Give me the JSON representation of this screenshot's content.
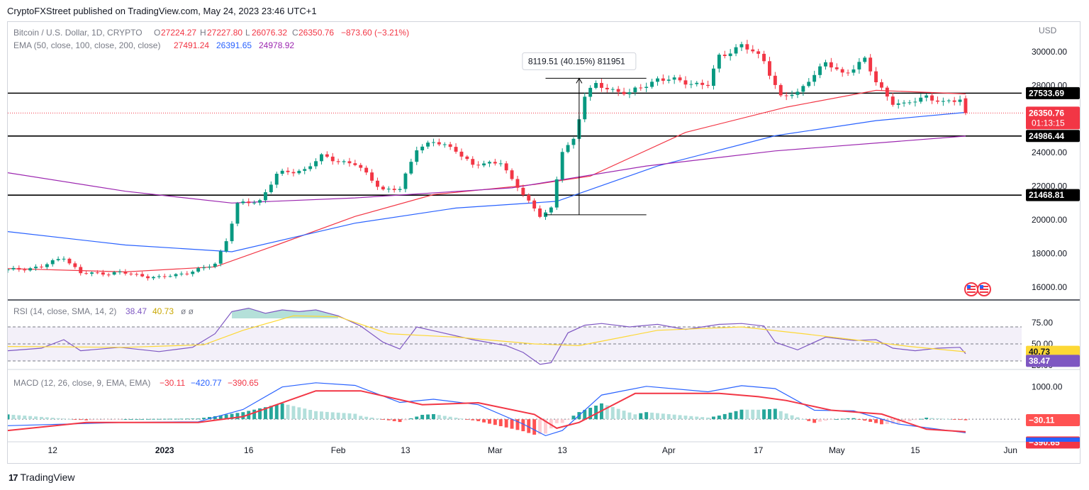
{
  "header": "CryptoFXStreet published on TradingView.com, May 24, 2023 23:46 UTC+1",
  "footer": {
    "brand": "TradingView",
    "logo_glyph": "17"
  },
  "legend": {
    "title": "Bitcoin / U.S. Dollar, 1D, CRYPTO",
    "o_label": "O",
    "o": "27224.27",
    "h_label": "H",
    "h": "27227.80",
    "l_label": "L",
    "l": "26076.32",
    "c_label": "C",
    "c": "26350.76",
    "change": "−873.60 (−3.21%)",
    "ema_title": "EMA (50, close, 100, close, 200, close)",
    "ema50": "27491.24",
    "ema100": "26391.65",
    "ema200": "24978.92",
    "rsi_title": "RSI (14, close, SMA, 14, 2)",
    "rsi": "38.47",
    "rsi_sma": "40.73",
    "rsi_extra": "ø ø",
    "macd_title": "MACD (12, 26, close, 9, EMA, EMA)",
    "macd_hist": "−30.11",
    "macd_line": "−420.77",
    "macd_signal": "−390.65"
  },
  "price_axis": {
    "unit": "USD",
    "ticks": [
      "30000.00",
      "28000.00",
      "26000.00",
      "24000.00",
      "22000.00",
      "20000.00",
      "18000.00",
      "16000.00"
    ]
  },
  "rsi_axis": {
    "ticks": [
      "75.00",
      "50.00",
      "25.00"
    ]
  },
  "macd_axis": {
    "ticks": [
      "1000.00"
    ]
  },
  "time_axis": {
    "labels": [
      "12",
      "2023",
      "16",
      "Feb",
      "13",
      "Mar",
      "13",
      "Apr",
      "17",
      "May",
      "15",
      "Jun"
    ]
  },
  "price_tags": {
    "level_1": "27533.69",
    "last": "26350.76",
    "countdown": "01:13:15",
    "level_2": "24986.44",
    "level_3": "21468.81",
    "rsi_sma": "40.73",
    "rsi": "38.47",
    "macd_hist": "−30.11",
    "macd_signal": "−390.65",
    "macd_line": "−420.77"
  },
  "measure_label": "8119.51 (40.15%) 811951",
  "colors": {
    "up": "#089981",
    "down": "#f23645",
    "ema50": "#f23645",
    "ema100": "#2962ff",
    "ema200": "#9c27b0",
    "rsi": "#7e57c2",
    "rsi_sma": "#fdd835"
  },
  "chart_data": [
    {
      "type": "candlestick",
      "title": "Bitcoin / U.S. Dollar, 1D, CRYPTO",
      "ylabel": "USD",
      "ylim": [
        15400,
        31600
      ],
      "x_range": [
        "2022-12-04",
        "2023-06-03"
      ],
      "x_tick_labels": [
        "12",
        "2023",
        "16",
        "Feb",
        "13",
        "Mar",
        "13",
        "Apr",
        "17",
        "May",
        "15",
        "Jun"
      ],
      "horizontal_levels": [
        27533.69,
        24986.44,
        21468.81
      ],
      "last_price": 26350.76,
      "measure": {
        "from": 20300,
        "to": 28420,
        "label": "8119.51 (40.15%) 811951"
      },
      "close_path": [
        [
          "2022-12-04",
          17000
        ],
        [
          "2022-12-10",
          17200
        ],
        [
          "2022-12-14",
          17800
        ],
        [
          "2022-12-17",
          16800
        ],
        [
          "2022-12-24",
          16850
        ],
        [
          "2022-12-31",
          16550
        ],
        [
          "2023-01-04",
          16800
        ],
        [
          "2023-01-08",
          17100
        ],
        [
          "2023-01-10",
          17400
        ],
        [
          "2023-01-12",
          18800
        ],
        [
          "2023-01-14",
          20900
        ],
        [
          "2023-01-18",
          21150
        ],
        [
          "2023-01-21",
          22700
        ],
        [
          "2023-01-26",
          23000
        ],
        [
          "2023-01-29",
          23750
        ],
        [
          "2023-02-04",
          23300
        ],
        [
          "2023-02-09",
          21800
        ],
        [
          "2023-02-12",
          21800
        ],
        [
          "2023-02-15",
          24300
        ],
        [
          "2023-02-18",
          24600
        ],
        [
          "2023-02-22",
          24200
        ],
        [
          "2023-02-25",
          23200
        ],
        [
          "2023-03-02",
          23500
        ],
        [
          "2023-03-04",
          22300
        ],
        [
          "2023-03-09",
          20300
        ],
        [
          "2023-03-11",
          20600
        ],
        [
          "2023-03-13",
          24100
        ],
        [
          "2023-03-15",
          24800
        ],
        [
          "2023-03-17",
          27400
        ],
        [
          "2023-03-19",
          28000
        ],
        [
          "2023-03-25",
          27500
        ],
        [
          "2023-03-30",
          28400
        ],
        [
          "2023-04-04",
          28200
        ],
        [
          "2023-04-08",
          28000
        ],
        [
          "2023-04-10",
          29700
        ],
        [
          "2023-04-14",
          30400
        ],
        [
          "2023-04-18",
          29500
        ],
        [
          "2023-04-21",
          27300
        ],
        [
          "2023-04-24",
          27500
        ],
        [
          "2023-04-26",
          28400
        ],
        [
          "2023-04-29",
          29300
        ],
        [
          "2023-05-02",
          28700
        ],
        [
          "2023-05-06",
          29500
        ],
        [
          "2023-05-08",
          28200
        ],
        [
          "2023-05-11",
          27000
        ],
        [
          "2023-05-13",
          26800
        ],
        [
          "2023-05-17",
          27400
        ],
        [
          "2023-05-20",
          26900
        ],
        [
          "2023-05-23",
          27200
        ],
        [
          "2023-05-24",
          26350.76
        ]
      ],
      "series": [
        {
          "name": "EMA 50",
          "color": "#f23645",
          "points": [
            [
              "2022-12-04",
              17100
            ],
            [
              "2022-12-25",
              16900
            ],
            [
              "2023-01-10",
              17200
            ],
            [
              "2023-01-21",
              18500
            ],
            [
              "2023-02-04",
              20200
            ],
            [
              "2023-02-18",
              21500
            ],
            [
              "2023-03-08",
              22100
            ],
            [
              "2023-03-18",
              22600
            ],
            [
              "2023-04-04",
              25200
            ],
            [
              "2023-04-22",
              26700
            ],
            [
              "2023-05-08",
              27700
            ],
            [
              "2023-05-24",
              27491.24
            ]
          ]
        },
        {
          "name": "EMA 100",
          "color": "#2962ff",
          "points": [
            [
              "2022-12-04",
              19300
            ],
            [
              "2022-12-25",
              18500
            ],
            [
              "2023-01-13",
              18100
            ],
            [
              "2023-02-04",
              19800
            ],
            [
              "2023-02-22",
              20700
            ],
            [
              "2023-03-12",
              21100
            ],
            [
              "2023-03-30",
              23200
            ],
            [
              "2023-04-20",
              25000
            ],
            [
              "2023-05-08",
              25900
            ],
            [
              "2023-05-24",
              26391.65
            ]
          ]
        },
        {
          "name": "EMA 200",
          "color": "#9c27b0",
          "points": [
            [
              "2022-12-04",
              22800
            ],
            [
              "2022-12-25",
              21700
            ],
            [
              "2023-01-13",
              21000
            ],
            [
              "2023-02-04",
              21300
            ],
            [
              "2023-03-04",
              21900
            ],
            [
              "2023-03-28",
              23200
            ],
            [
              "2023-04-20",
              24100
            ],
            [
              "2023-05-24",
              24978.92
            ]
          ]
        }
      ]
    },
    {
      "type": "line",
      "title": "RSI (14, close, SMA, 14, 2)",
      "ylim": [
        20,
        100
      ],
      "bands": [
        30,
        70
      ],
      "midline": 50,
      "series": [
        {
          "name": "RSI",
          "color": "#7e57c2",
          "points": [
            [
              "2022-12-04",
              42
            ],
            [
              "2022-12-10",
              45
            ],
            [
              "2022-12-14",
              55
            ],
            [
              "2022-12-17",
              42
            ],
            [
              "2022-12-24",
              46
            ],
            [
              "2022-12-31",
              41
            ],
            [
              "2023-01-06",
              46
            ],
            [
              "2023-01-10",
              62
            ],
            [
              "2023-01-13",
              88
            ],
            [
              "2023-01-16",
              92
            ],
            [
              "2023-01-19",
              86
            ],
            [
              "2023-01-22",
              90
            ],
            [
              "2023-01-25",
              88
            ],
            [
              "2023-01-28",
              90
            ],
            [
              "2023-02-01",
              83
            ],
            [
              "2023-02-05",
              71
            ],
            [
              "2023-02-09",
              52
            ],
            [
              "2023-02-12",
              44
            ],
            [
              "2023-02-15",
              70
            ],
            [
              "2023-02-19",
              64
            ],
            [
              "2023-02-25",
              55
            ],
            [
              "2023-03-03",
              48
            ],
            [
              "2023-03-06",
              40
            ],
            [
              "2023-03-09",
              26
            ],
            [
              "2023-03-11",
              28
            ],
            [
              "2023-03-14",
              63
            ],
            [
              "2023-03-17",
              72
            ],
            [
              "2023-03-20",
              74
            ],
            [
              "2023-03-25",
              70
            ],
            [
              "2023-03-30",
              73
            ],
            [
              "2023-04-04",
              67
            ],
            [
              "2023-04-10",
              73
            ],
            [
              "2023-04-14",
              74
            ],
            [
              "2023-04-18",
              71
            ],
            [
              "2023-04-20",
              52
            ],
            [
              "2023-04-24",
              43
            ],
            [
              "2023-04-29",
              58
            ],
            [
              "2023-05-04",
              54
            ],
            [
              "2023-05-08",
              55
            ],
            [
              "2023-05-11",
              45
            ],
            [
              "2023-05-15",
              42
            ],
            [
              "2023-05-19",
              45
            ],
            [
              "2023-05-23",
              46
            ],
            [
              "2023-05-24",
              38.47
            ]
          ]
        },
        {
          "name": "RSI SMA",
          "color": "#fdd835",
          "points": [
            [
              "2022-12-04",
              47
            ],
            [
              "2022-12-25",
              46
            ],
            [
              "2023-01-08",
              49
            ],
            [
              "2023-01-15",
              66
            ],
            [
              "2023-01-24",
              83
            ],
            [
              "2023-02-01",
              82
            ],
            [
              "2023-02-10",
              62
            ],
            [
              "2023-02-22",
              58
            ],
            [
              "2023-03-08",
              50
            ],
            [
              "2023-03-16",
              48
            ],
            [
              "2023-03-30",
              66
            ],
            [
              "2023-04-14",
              70
            ],
            [
              "2023-04-25",
              62
            ],
            [
              "2023-05-04",
              55
            ],
            [
              "2023-05-14",
              47
            ],
            [
              "2023-05-24",
              40.73
            ]
          ]
        }
      ]
    },
    {
      "type": "line",
      "title": "MACD (12, 26, close, 9, EMA, EMA)",
      "ylim": [
        -700,
        1500
      ],
      "series": [
        {
          "name": "MACD",
          "color": "#2962ff",
          "points": [
            [
              "2022-12-04",
              -200
            ],
            [
              "2022-12-25",
              -100
            ],
            [
              "2023-01-07",
              -80
            ],
            [
              "2023-01-15",
              300
            ],
            [
              "2023-01-22",
              1000
            ],
            [
              "2023-01-28",
              1130
            ],
            [
              "2023-02-04",
              1050
            ],
            [
              "2023-02-12",
              520
            ],
            [
              "2023-02-18",
              620
            ],
            [
              "2023-02-26",
              450
            ],
            [
              "2023-03-06",
              -150
            ],
            [
              "2023-03-10",
              -510
            ],
            [
              "2023-03-13",
              -350
            ],
            [
              "2023-03-20",
              750
            ],
            [
              "2023-03-28",
              1020
            ],
            [
              "2023-04-08",
              850
            ],
            [
              "2023-04-14",
              1040
            ],
            [
              "2023-04-20",
              950
            ],
            [
              "2023-04-27",
              280
            ],
            [
              "2023-05-04",
              260
            ],
            [
              "2023-05-12",
              -150
            ],
            [
              "2023-05-24",
              -420.77
            ]
          ]
        },
        {
          "name": "Signal",
          "color": "#f23645",
          "points": [
            [
              "2022-12-04",
              -350
            ],
            [
              "2022-12-18",
              -100
            ],
            [
              "2023-01-07",
              -100
            ],
            [
              "2023-01-15",
              80
            ],
            [
              "2023-01-28",
              880
            ],
            [
              "2023-02-05",
              880
            ],
            [
              "2023-02-16",
              450
            ],
            [
              "2023-02-26",
              510
            ],
            [
              "2023-03-08",
              150
            ],
            [
              "2023-03-12",
              -280
            ],
            [
              "2023-03-16",
              -100
            ],
            [
              "2023-03-26",
              800
            ],
            [
              "2023-04-10",
              800
            ],
            [
              "2023-04-17",
              700
            ],
            [
              "2023-04-22",
              580
            ],
            [
              "2023-04-30",
              280
            ],
            [
              "2023-05-09",
              160
            ],
            [
              "2023-05-17",
              -310
            ],
            [
              "2023-05-24",
              -390.65
            ]
          ]
        }
      ],
      "histogram": {
        "name": "Histogram",
        "last": -30.11
      }
    }
  ]
}
